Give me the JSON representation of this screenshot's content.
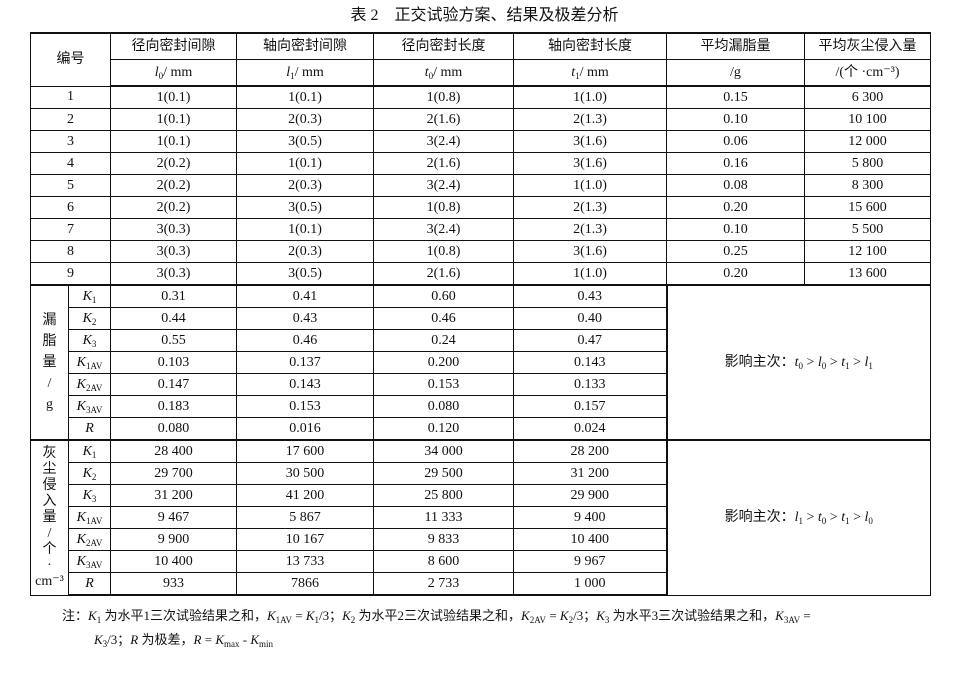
{
  "title": "表 2　正交试验方案、结果及极差分析",
  "header": {
    "id_label": "编号",
    "columns": [
      {
        "title": "径向密封间隙",
        "var": "l",
        "sub": "0",
        "rest": "/ mm"
      },
      {
        "title": "轴向密封间隙",
        "var": "l",
        "sub": "1",
        "rest": "/ mm"
      },
      {
        "title": "径向密封长度",
        "var": "t",
        "sub": "0",
        "rest": "/ mm"
      },
      {
        "title": "轴向密封长度",
        "var": "t",
        "sub": "1",
        "rest": "/ mm"
      },
      {
        "title": "平均漏脂量",
        "var": "",
        "sub": "",
        "rest": "/g"
      },
      {
        "title": "平均灰尘侵入量",
        "var": "",
        "sub": "",
        "rest": "/(个 ·cm⁻³)"
      }
    ]
  },
  "rows": [
    [
      "1",
      "1(0.1)",
      "1(0.1)",
      "1(0.8)",
      "1(1.0)",
      "0.15",
      "6 300"
    ],
    [
      "2",
      "1(0.1)",
      "2(0.3)",
      "2(1.6)",
      "2(1.3)",
      "0.10",
      "10 100"
    ],
    [
      "3",
      "1(0.1)",
      "3(0.5)",
      "3(2.4)",
      "3(1.6)",
      "0.06",
      "12 000"
    ],
    [
      "4",
      "2(0.2)",
      "1(0.1)",
      "2(1.6)",
      "3(1.6)",
      "0.16",
      "5 800"
    ],
    [
      "5",
      "2(0.2)",
      "2(0.3)",
      "3(2.4)",
      "1(1.0)",
      "0.08",
      "8 300"
    ],
    [
      "6",
      "2(0.2)",
      "3(0.5)",
      "1(0.8)",
      "2(1.3)",
      "0.20",
      "15 600"
    ],
    [
      "7",
      "3(0.3)",
      "1(0.1)",
      "3(2.4)",
      "2(1.3)",
      "0.10",
      "5 500"
    ],
    [
      "8",
      "3(0.3)",
      "2(0.3)",
      "1(0.8)",
      "3(1.6)",
      "0.25",
      "12 100"
    ],
    [
      "9",
      "3(0.3)",
      "3(0.5)",
      "2(1.6)",
      "1(1.0)",
      "0.20",
      "13 600"
    ]
  ],
  "groups": [
    {
      "label": [
        "漏",
        "脂",
        "量",
        "/",
        "g"
      ],
      "rows": [
        {
          "k": "K",
          "sub": "1",
          "values": [
            "0.31",
            "0.41",
            "0.60",
            "0.43"
          ]
        },
        {
          "k": "K",
          "sub": "2",
          "values": [
            "0.44",
            "0.43",
            "0.46",
            "0.40"
          ]
        },
        {
          "k": "K",
          "sub": "3",
          "values": [
            "0.55",
            "0.46",
            "0.24",
            "0.47"
          ]
        },
        {
          "k": "K",
          "sub": "1AV",
          "values": [
            "0.103",
            "0.137",
            "0.200",
            "0.143"
          ]
        },
        {
          "k": "K",
          "sub": "2AV",
          "values": [
            "0.147",
            "0.143",
            "0.153",
            "0.133"
          ]
        },
        {
          "k": "K",
          "sub": "3AV",
          "values": [
            "0.183",
            "0.153",
            "0.080",
            "0.157"
          ]
        },
        {
          "k": "R",
          "sub": "",
          "values": [
            "0.080",
            "0.016",
            "0.120",
            "0.024"
          ]
        }
      ],
      "influence": {
        "prefix": "影响主次：",
        "order": [
          [
            "t",
            "0"
          ],
          [
            "l",
            "0"
          ],
          [
            "t",
            "1"
          ],
          [
            "l",
            "1"
          ]
        ]
      }
    },
    {
      "label": [
        "灰",
        "尘",
        "侵",
        "入",
        "量",
        "/",
        "个",
        "·",
        "cm⁻³"
      ],
      "rows": [
        {
          "k": "K",
          "sub": "1",
          "values": [
            "28 400",
            "17 600",
            "34 000",
            "28 200"
          ]
        },
        {
          "k": "K",
          "sub": "2",
          "values": [
            "29 700",
            "30 500",
            "29 500",
            "31 200"
          ]
        },
        {
          "k": "K",
          "sub": "3",
          "values": [
            "31 200",
            "41 200",
            "25 800",
            "29 900"
          ]
        },
        {
          "k": "K",
          "sub": "1AV",
          "values": [
            "9 467",
            "5 867",
            "11 333",
            "9 400"
          ]
        },
        {
          "k": "K",
          "sub": "2AV",
          "values": [
            "9 900",
            "10 167",
            "9 833",
            "10 400"
          ]
        },
        {
          "k": "K",
          "sub": "3AV",
          "values": [
            "10 400",
            "13 733",
            "8 600",
            "9 967"
          ]
        },
        {
          "k": "R",
          "sub": "",
          "values": [
            "933",
            "7866",
            "2 733",
            "1 000"
          ]
        }
      ],
      "influence": {
        "prefix": "影响主次：",
        "order": [
          [
            "l",
            "1"
          ],
          [
            "t",
            "0"
          ],
          [
            "t",
            "1"
          ],
          [
            "l",
            "0"
          ]
        ]
      }
    }
  ],
  "note": {
    "line1": [
      [
        "注：",
        ""
      ],
      [
        "K",
        "i"
      ],
      [
        "1",
        "s"
      ],
      [
        " 为水平1三次试验结果之和，",
        ""
      ],
      [
        "K",
        "i"
      ],
      [
        "1AV",
        "s"
      ],
      [
        " = ",
        ""
      ],
      [
        "K",
        "i"
      ],
      [
        "1",
        "s"
      ],
      [
        "/3；",
        ""
      ],
      [
        "K",
        "i"
      ],
      [
        "2",
        "s"
      ],
      [
        " 为水平2三次试验结果之和，",
        ""
      ],
      [
        "K",
        "i"
      ],
      [
        "2AV",
        "s"
      ],
      [
        " = ",
        ""
      ],
      [
        "K",
        "i"
      ],
      [
        "2",
        "s"
      ],
      [
        "/3；",
        ""
      ],
      [
        "K",
        "i"
      ],
      [
        "3",
        "s"
      ],
      [
        " 为水平3三次试验结果之和，",
        ""
      ],
      [
        "K",
        "i"
      ],
      [
        "3AV",
        "s"
      ],
      [
        " =",
        ""
      ]
    ],
    "line2": [
      [
        "K",
        "i"
      ],
      [
        "3",
        "s"
      ],
      [
        "/3；",
        ""
      ],
      [
        "R",
        "i"
      ],
      [
        " 为极差，",
        ""
      ],
      [
        "R",
        "i"
      ],
      [
        " = ",
        ""
      ],
      [
        "K",
        "i"
      ],
      [
        "max",
        "s"
      ],
      [
        " - ",
        ""
      ],
      [
        "K",
        "i"
      ],
      [
        "min",
        "s"
      ]
    ]
  }
}
